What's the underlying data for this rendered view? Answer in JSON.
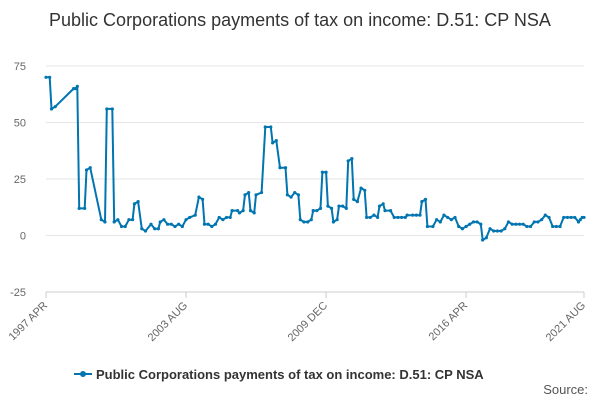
{
  "chart_data": {
    "type": "line",
    "title": "Public Corporations payments of tax on income: D.51: CP NSA",
    "xlabel": "",
    "ylabel": "",
    "ylim": [
      -25,
      75
    ],
    "yticks": [
      75,
      50,
      25,
      0,
      -25
    ],
    "x_tick_labels": [
      "1997 APR",
      "2003 AUG",
      "2009 DEC",
      "2016 APR",
      "2021 AUG"
    ],
    "grid": "horizontal",
    "legend_position": "bottom",
    "color": "#0075b0",
    "source_label": "Source:",
    "x_start": "1997-04",
    "x_end": "2021-08",
    "series": [
      {
        "name": "Public Corporations payments of tax on income: D.51: CP NSA",
        "points": [
          [
            "1997-04",
            70
          ],
          [
            "1997-06",
            70
          ],
          [
            "1997-07",
            56
          ],
          [
            "1997-09",
            57
          ],
          [
            "1998-07",
            65
          ],
          [
            "1998-08",
            65
          ],
          [
            "1998-09",
            66
          ],
          [
            "1998-10",
            12
          ],
          [
            "1999-01",
            12
          ],
          [
            "1999-02",
            29
          ],
          [
            "1999-04",
            30
          ],
          [
            "1999-10",
            7
          ],
          [
            "1999-12",
            6
          ],
          [
            "2000-01",
            56
          ],
          [
            "2000-04",
            56
          ],
          [
            "2000-05",
            6
          ],
          [
            "2000-07",
            7
          ],
          [
            "2000-09",
            4
          ],
          [
            "2000-11",
            4
          ],
          [
            "2001-01",
            7
          ],
          [
            "2001-03",
            7
          ],
          [
            "2001-04",
            14
          ],
          [
            "2001-06",
            15
          ],
          [
            "2001-08",
            3
          ],
          [
            "2001-10",
            2
          ],
          [
            "2002-01",
            5
          ],
          [
            "2002-03",
            3
          ],
          [
            "2002-05",
            3
          ],
          [
            "2002-06",
            6
          ],
          [
            "2002-08",
            7
          ],
          [
            "2002-10",
            5
          ],
          [
            "2002-12",
            5
          ],
          [
            "2003-02",
            4
          ],
          [
            "2003-04",
            5
          ],
          [
            "2003-06",
            4
          ],
          [
            "2003-08",
            7
          ],
          [
            "2003-10",
            8
          ],
          [
            "2004-01",
            9
          ],
          [
            "2004-03",
            17
          ],
          [
            "2004-05",
            16
          ],
          [
            "2004-06",
            5
          ],
          [
            "2004-08",
            5
          ],
          [
            "2004-10",
            4
          ],
          [
            "2004-12",
            5
          ],
          [
            "2005-02",
            8
          ],
          [
            "2005-04",
            7
          ],
          [
            "2005-06",
            8
          ],
          [
            "2005-08",
            8
          ],
          [
            "2005-09",
            11
          ],
          [
            "2005-12",
            11
          ],
          [
            "2006-01",
            10
          ],
          [
            "2006-03",
            11
          ],
          [
            "2006-04",
            18
          ],
          [
            "2006-06",
            19
          ],
          [
            "2006-07",
            11
          ],
          [
            "2006-09",
            10
          ],
          [
            "2006-10",
            18
          ],
          [
            "2007-01",
            19
          ],
          [
            "2007-03",
            48
          ],
          [
            "2007-06",
            48
          ],
          [
            "2007-07",
            41
          ],
          [
            "2007-09",
            42
          ],
          [
            "2007-11",
            30
          ],
          [
            "2008-02",
            30
          ],
          [
            "2008-03",
            18
          ],
          [
            "2008-05",
            17
          ],
          [
            "2008-07",
            19
          ],
          [
            "2008-09",
            18
          ],
          [
            "2008-10",
            7
          ],
          [
            "2008-12",
            6
          ],
          [
            "2009-02",
            6
          ],
          [
            "2009-04",
            7
          ],
          [
            "2009-05",
            11
          ],
          [
            "2009-07",
            11
          ],
          [
            "2009-09",
            12
          ],
          [
            "2009-10",
            28
          ],
          [
            "2009-12",
            28
          ],
          [
            "2010-01",
            13
          ],
          [
            "2010-03",
            12
          ],
          [
            "2010-04",
            6
          ],
          [
            "2010-06",
            7
          ],
          [
            "2010-07",
            13
          ],
          [
            "2010-09",
            13
          ],
          [
            "2010-11",
            12
          ],
          [
            "2010-12",
            33
          ],
          [
            "2011-02",
            34
          ],
          [
            "2011-03",
            16
          ],
          [
            "2011-05",
            15
          ],
          [
            "2011-07",
            21
          ],
          [
            "2011-09",
            20
          ],
          [
            "2011-10",
            8
          ],
          [
            "2011-12",
            8
          ],
          [
            "2012-02",
            9
          ],
          [
            "2012-04",
            8
          ],
          [
            "2012-05",
            13
          ],
          [
            "2012-07",
            14
          ],
          [
            "2012-08",
            11
          ],
          [
            "2012-11",
            11
          ],
          [
            "2013-01",
            8
          ],
          [
            "2013-03",
            8
          ],
          [
            "2013-05",
            8
          ],
          [
            "2013-07",
            8
          ],
          [
            "2013-08",
            9
          ],
          [
            "2013-11",
            9
          ],
          [
            "2014-01",
            9
          ],
          [
            "2014-03",
            9
          ],
          [
            "2014-04",
            15
          ],
          [
            "2014-06",
            16
          ],
          [
            "2014-07",
            4
          ],
          [
            "2014-10",
            4
          ],
          [
            "2014-12",
            7
          ],
          [
            "2015-02",
            6
          ],
          [
            "2015-04",
            9
          ],
          [
            "2015-06",
            8
          ],
          [
            "2015-08",
            7
          ],
          [
            "2015-10",
            8
          ],
          [
            "2015-12",
            4
          ],
          [
            "2016-02",
            3
          ],
          [
            "2016-04",
            4
          ],
          [
            "2016-06",
            5
          ],
          [
            "2016-08",
            6
          ],
          [
            "2016-10",
            6
          ],
          [
            "2016-12",
            5
          ],
          [
            "2017-01",
            -2
          ],
          [
            "2017-03",
            -1
          ],
          [
            "2017-05",
            3
          ],
          [
            "2017-07",
            2
          ],
          [
            "2017-09",
            2
          ],
          [
            "2017-11",
            2
          ],
          [
            "2018-01",
            3
          ],
          [
            "2018-03",
            6
          ],
          [
            "2018-05",
            5
          ],
          [
            "2018-07",
            5
          ],
          [
            "2018-09",
            5
          ],
          [
            "2018-11",
            5
          ],
          [
            "2019-01",
            4
          ],
          [
            "2019-03",
            4
          ],
          [
            "2019-05",
            6
          ],
          [
            "2019-07",
            6
          ],
          [
            "2019-09",
            7
          ],
          [
            "2019-11",
            9
          ],
          [
            "2020-01",
            8
          ],
          [
            "2020-03",
            4
          ],
          [
            "2020-05",
            4
          ],
          [
            "2020-07",
            4
          ],
          [
            "2020-09",
            8
          ],
          [
            "2020-11",
            8
          ],
          [
            "2021-01",
            8
          ],
          [
            "2021-03",
            8
          ],
          [
            "2021-05",
            6
          ],
          [
            "2021-06",
            7
          ],
          [
            "2021-07",
            8
          ],
          [
            "2021-08",
            8
          ]
        ]
      }
    ]
  }
}
